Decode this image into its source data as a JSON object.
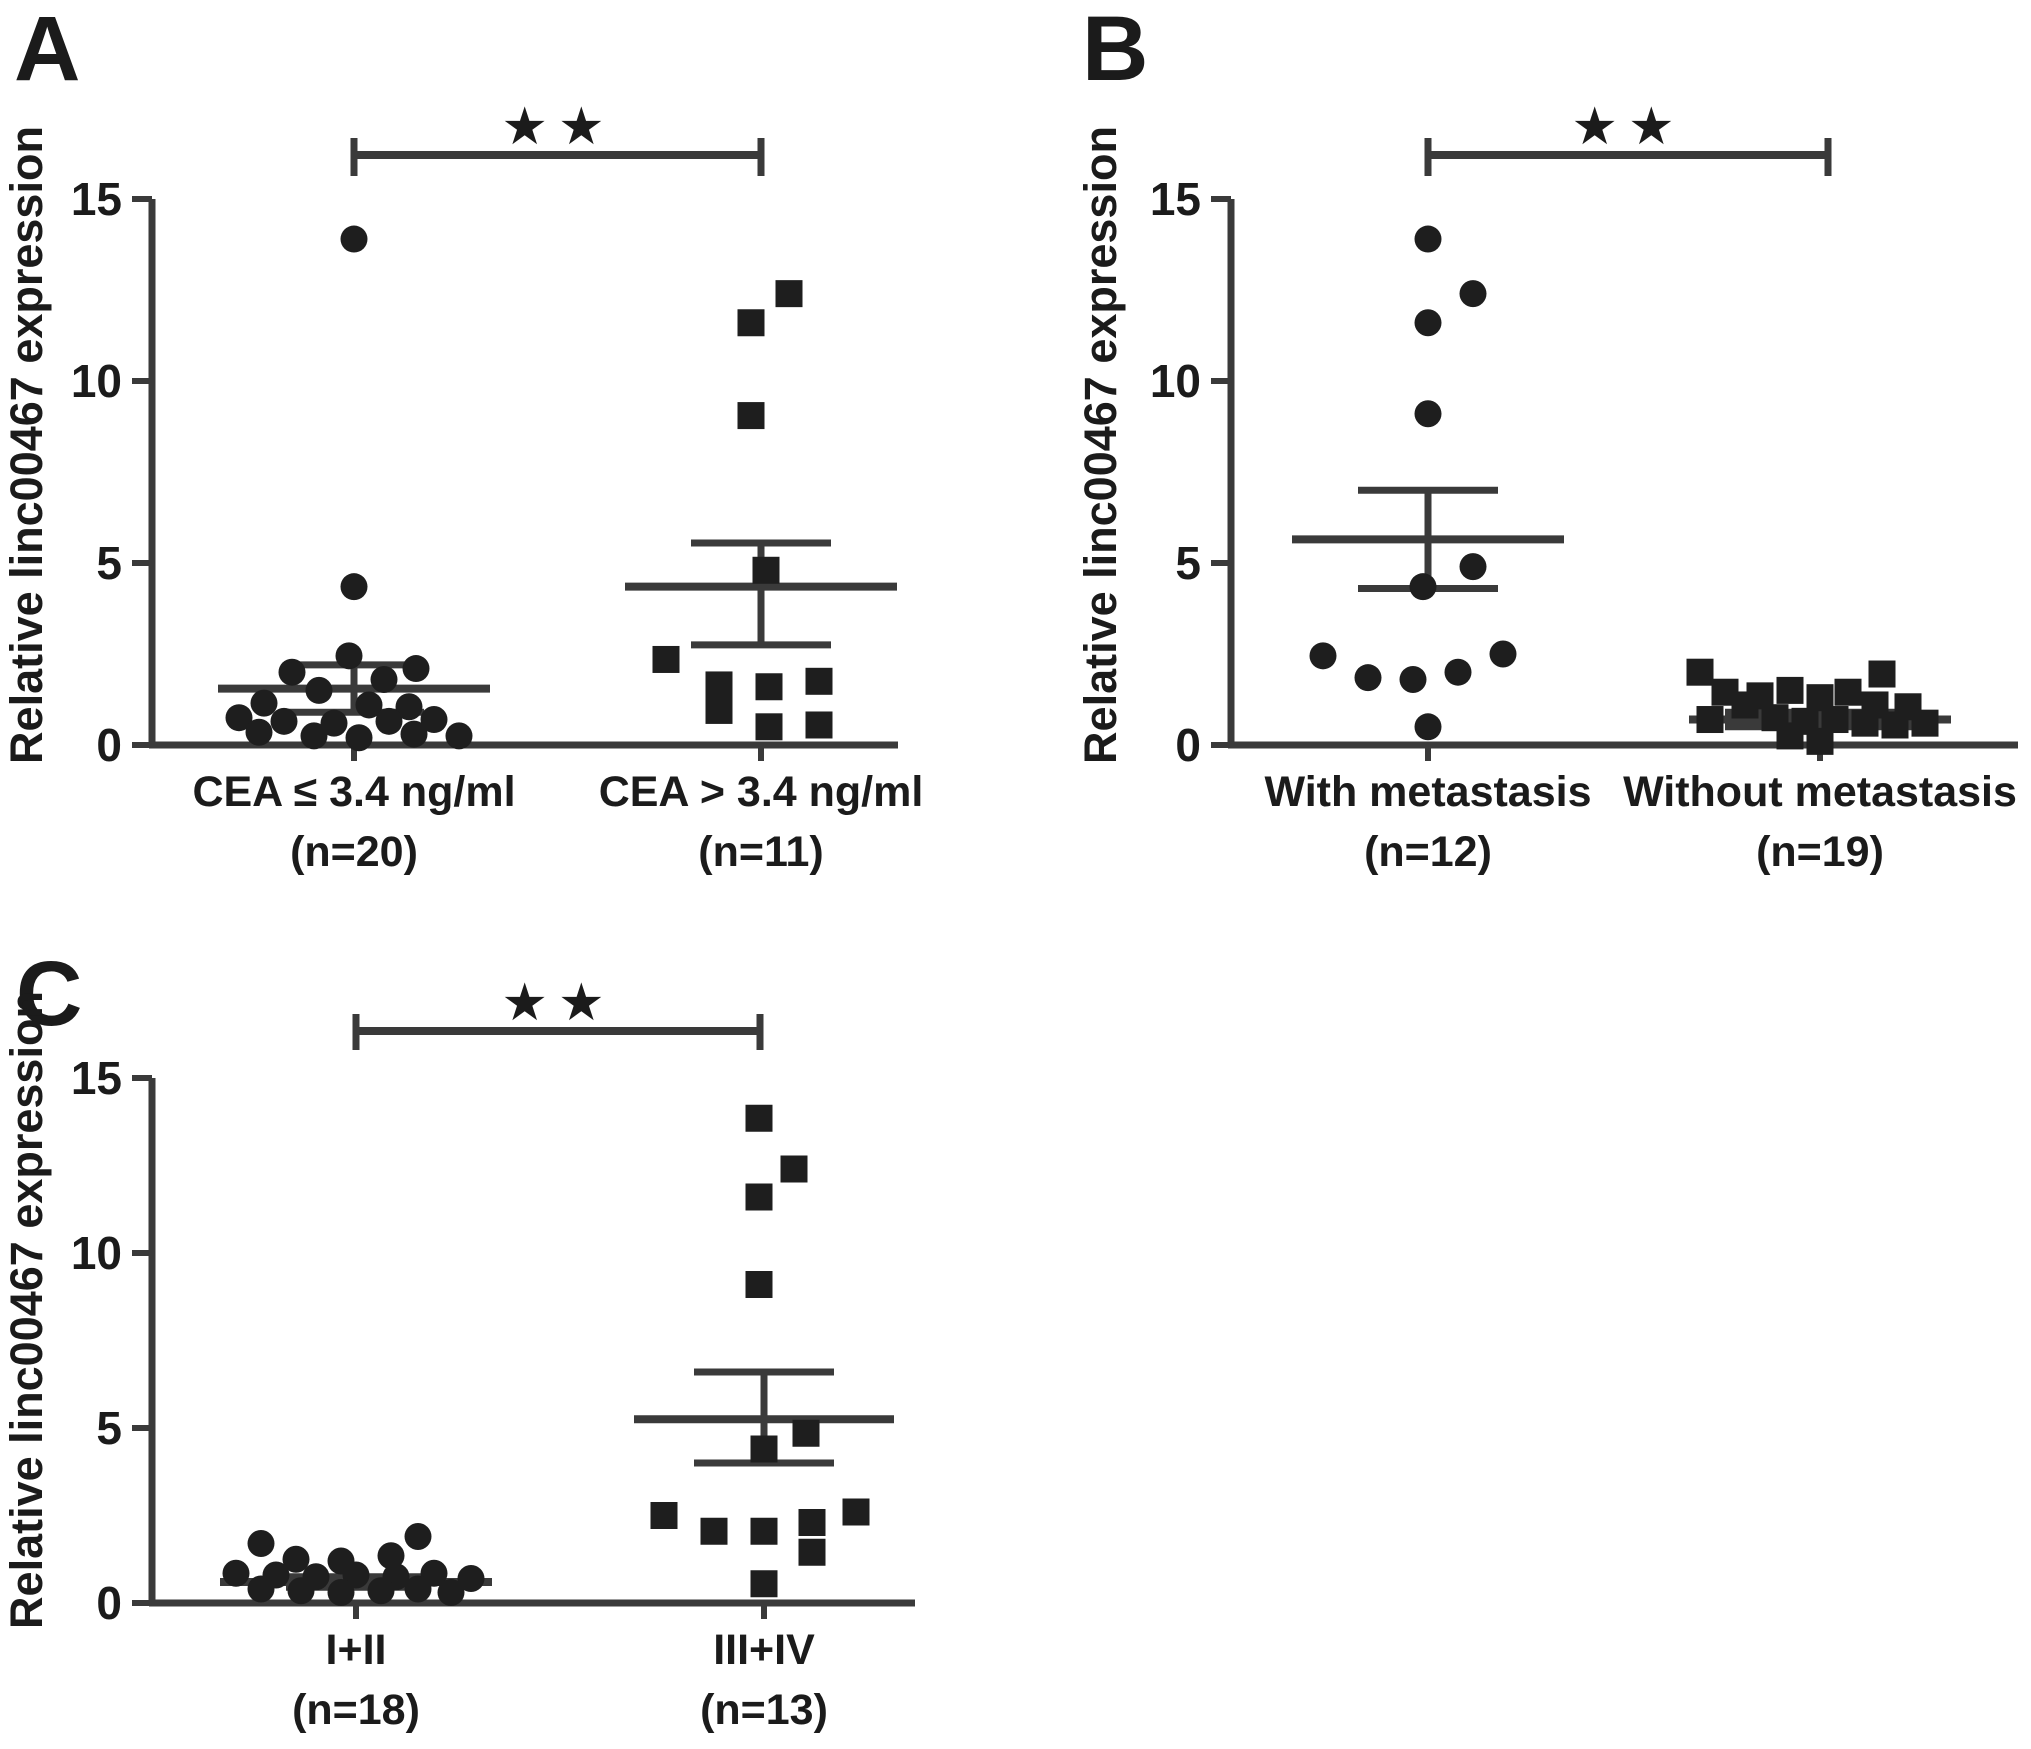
{
  "figure": {
    "background": "#ffffff",
    "ink": "#1b1b1b",
    "line_color": "#3a3a3a",
    "marker_color": "#1e1e1e"
  },
  "chart_data": [
    {
      "panel": "A",
      "type": "scatter",
      "ylabel": "Relative linc00467 expression",
      "ylim": [
        0,
        15
      ],
      "yticks": [
        0,
        5,
        10,
        15
      ],
      "grid": false,
      "legend": "none",
      "significance": "★★",
      "groups": [
        {
          "label": "CEA ≤ 3.4 ng/ml",
          "n_label": "(n=20)",
          "n": 20,
          "marker": "circle",
          "mean": 1.55,
          "sem_top": 2.2,
          "sem_bottom": 0.9,
          "values": [
            13.9,
            4.35,
            2.45,
            2.0,
            2.1,
            1.8,
            1.5,
            1.15,
            1.1,
            1.05,
            0.75,
            0.65,
            0.6,
            0.65,
            0.7,
            0.35,
            0.25,
            0.2,
            0.3,
            0.25
          ],
          "jitter": [
            0,
            0,
            -5,
            -62,
            62,
            30,
            -35,
            -90,
            15,
            55,
            -115,
            -70,
            -20,
            35,
            80,
            -95,
            -40,
            5,
            60,
            105
          ]
        },
        {
          "label": "CEA > 3.4 ng/ml",
          "n_label": "(n=11)",
          "n": 11,
          "marker": "square",
          "mean": 4.35,
          "sem_top": 5.55,
          "sem_bottom": 2.75,
          "values": [
            12.4,
            11.6,
            9.05,
            4.8,
            2.35,
            1.65,
            1.6,
            1.75,
            0.95,
            0.5,
            0.55
          ],
          "jitter": [
            28,
            -10,
            -10,
            5,
            -95,
            -42,
            8,
            58,
            -42,
            8,
            58
          ]
        }
      ]
    },
    {
      "panel": "B",
      "type": "scatter",
      "ylabel": "Relative linc00467 expression",
      "ylim": [
        0,
        15
      ],
      "yticks": [
        0,
        5,
        10,
        15
      ],
      "grid": false,
      "legend": "none",
      "significance": "★★",
      "groups": [
        {
          "label": "With metastasis",
          "n_label": "(n=12)",
          "n": 12,
          "marker": "circle",
          "mean": 5.65,
          "sem_top": 7.0,
          "sem_bottom": 4.3,
          "values": [
            13.9,
            12.4,
            11.6,
            9.1,
            4.9,
            4.35,
            2.45,
            1.85,
            1.8,
            2.0,
            2.5,
            0.5
          ],
          "jitter": [
            0,
            45,
            0,
            0,
            45,
            -5,
            -105,
            -60,
            -15,
            30,
            75,
            0
          ]
        },
        {
          "label": "Without metastasis",
          "n_label": "(n=19)",
          "n": 19,
          "marker": "square",
          "mean": 0.7,
          "sem_top": 0.9,
          "sem_bottom": 0.5,
          "values": [
            2.0,
            1.95,
            1.45,
            1.35,
            1.5,
            1.3,
            1.45,
            1.1,
            1.1,
            1.05,
            0.7,
            0.75,
            0.65,
            0.7,
            0.6,
            0.55,
            0.6,
            0.25,
            0.1
          ],
          "jitter": [
            -120,
            62,
            -95,
            -60,
            -30,
            0,
            28,
            -75,
            55,
            88,
            -110,
            -45,
            -15,
            15,
            45,
            75,
            105,
            -30,
            0
          ]
        }
      ]
    },
    {
      "panel": "C",
      "type": "scatter",
      "ylabel": "Relative linc00467 expression",
      "ylim": [
        0,
        15
      ],
      "yticks": [
        0,
        5,
        10,
        15
      ],
      "grid": false,
      "legend": "none",
      "significance": "★★",
      "groups": [
        {
          "label": "I+II",
          "n_label": "(n=18)",
          "n": 18,
          "marker": "circle",
          "mean": 0.6,
          "sem_top": 0.75,
          "sem_bottom": 0.45,
          "values": [
            1.7,
            1.9,
            1.25,
            1.2,
            1.35,
            0.85,
            0.8,
            0.75,
            0.8,
            0.75,
            0.85,
            0.7,
            0.4,
            0.35,
            0.3,
            0.35,
            0.4,
            0.3
          ],
          "jitter": [
            -95,
            62,
            -60,
            -15,
            35,
            -120,
            -80,
            -40,
            0,
            40,
            78,
            115,
            -95,
            -55,
            -15,
            25,
            62,
            95
          ]
        },
        {
          "label": "III+IV",
          "n_label": "(n=13)",
          "n": 13,
          "marker": "square",
          "mean": 5.25,
          "sem_top": 6.6,
          "sem_bottom": 4.0,
          "values": [
            13.85,
            12.4,
            11.6,
            9.1,
            4.85,
            4.4,
            2.5,
            2.05,
            2.05,
            2.3,
            2.6,
            1.45,
            0.55
          ],
          "jitter": [
            -5,
            30,
            -5,
            -5,
            42,
            0,
            -100,
            -50,
            0,
            48,
            92,
            48,
            0
          ]
        }
      ]
    }
  ]
}
